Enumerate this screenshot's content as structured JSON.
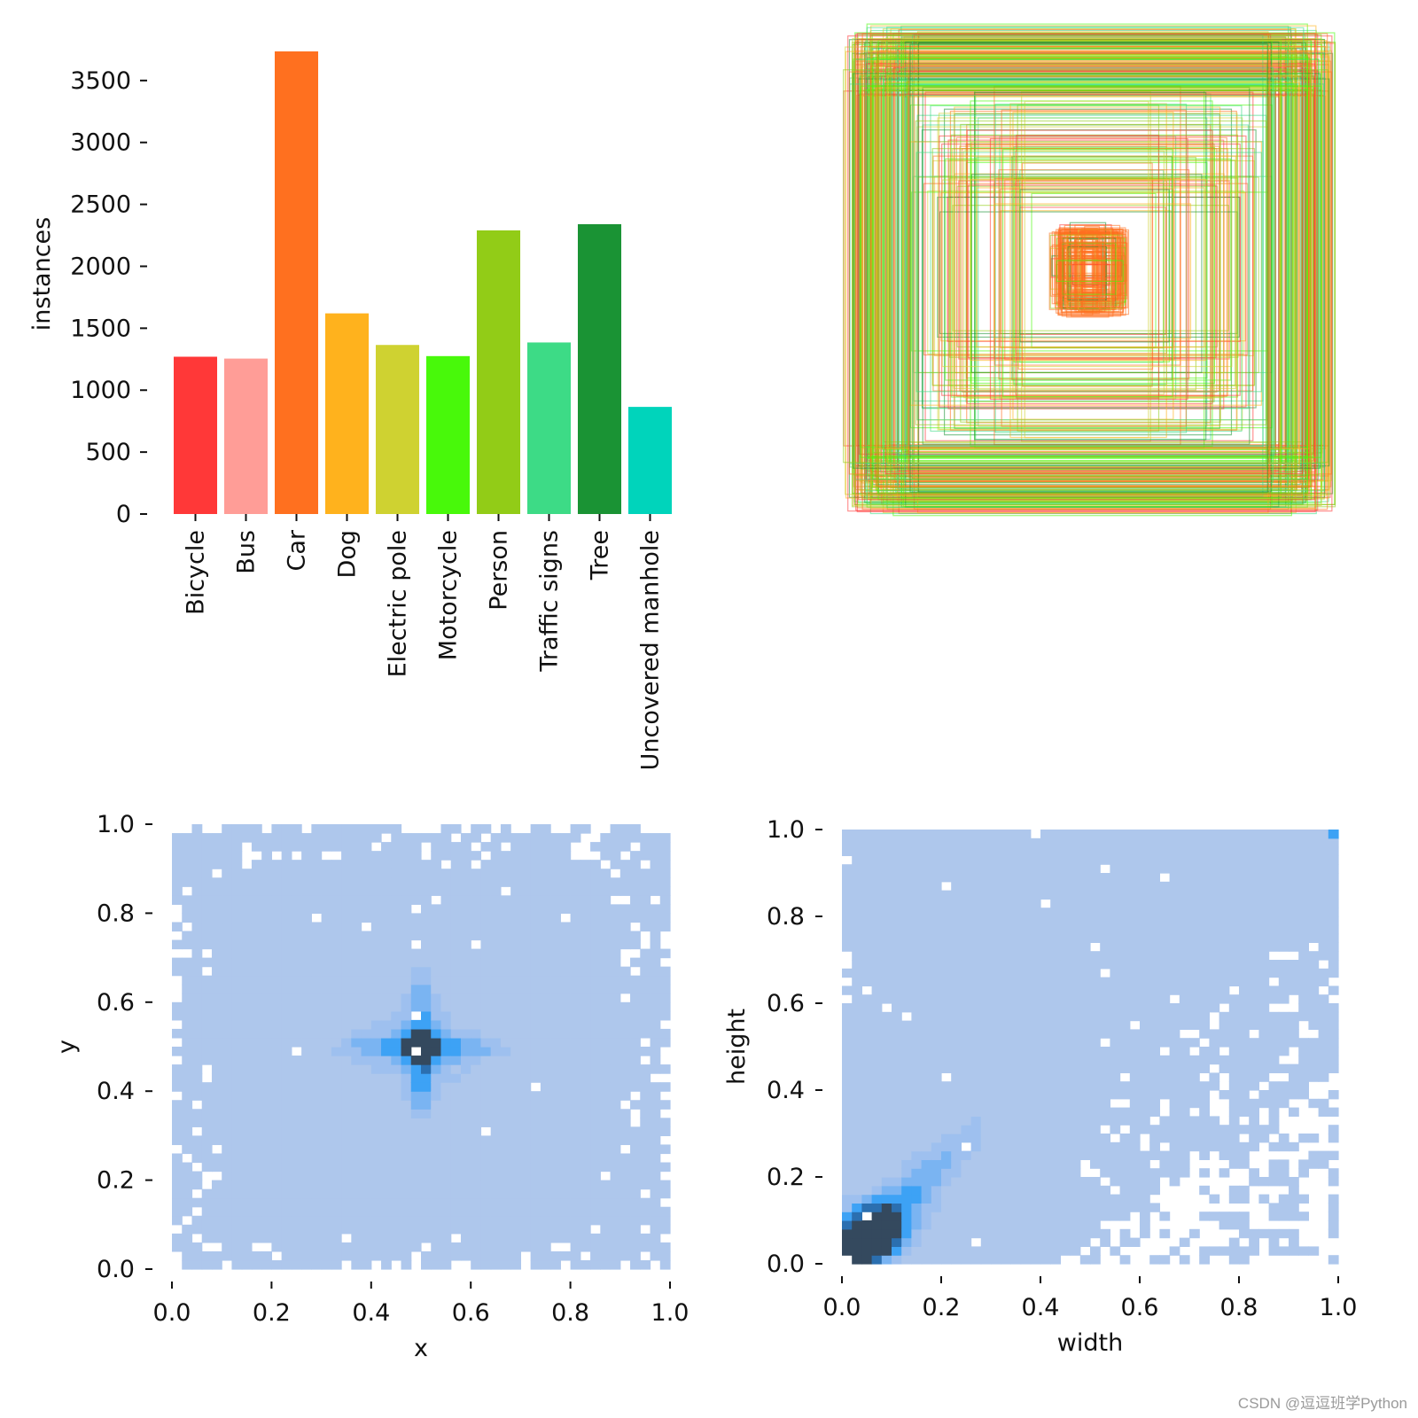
{
  "chart_data": [
    {
      "type": "bar",
      "categories": [
        "Bicycle",
        "Bus",
        "Car",
        "Dog",
        "Electric pole",
        "Motorcycle",
        "Person",
        "Traffic signs",
        "Tree",
        "Uncovered manhole"
      ],
      "values": [
        1270,
        1255,
        3735,
        1620,
        1365,
        1275,
        2290,
        1385,
        2340,
        865
      ],
      "colors": [
        "#ff3838",
        "#ff9d97",
        "#ff701f",
        "#ffb21d",
        "#cfd231",
        "#48f90a",
        "#92cc17",
        "#3ddb86",
        "#1a9334",
        "#00d4bb"
      ],
      "xlabel": "",
      "ylabel": "instances",
      "yticks": [
        0,
        500,
        1000,
        1500,
        2000,
        2500,
        3000,
        3500
      ],
      "ylim": [
        0,
        3735
      ]
    },
    {
      "type": "box-overlay",
      "description_none": "",
      "series_colors": [
        "#ff701f",
        "#48f90a",
        "#92cc17",
        "#1a9334",
        "#3ddb86",
        "#cfd231",
        "#ff3838",
        "#ffb21d"
      ],
      "box_count": 420
    },
    {
      "type": "heatmap",
      "xlabel": "x",
      "ylabel": "y",
      "xticks": [
        "0.0",
        "0.2",
        "0.4",
        "0.6",
        "0.8",
        "1.0"
      ],
      "yticks": [
        "0.0",
        "0.2",
        "0.4",
        "0.6",
        "0.8",
        "1.0"
      ],
      "xlim": [
        0,
        1
      ],
      "ylim": [
        0,
        1
      ],
      "bins": 50,
      "peak": [
        0.5,
        0.5
      ],
      "colors": [
        "#aec7ec",
        "#9ec0ef",
        "#7ab4f2",
        "#3da2f5",
        "#2b6fb0",
        "#34495e"
      ]
    },
    {
      "type": "heatmap",
      "xlabel": "width",
      "ylabel": "height",
      "xticks": [
        "0.0",
        "0.2",
        "0.4",
        "0.6",
        "0.8",
        "1.0"
      ],
      "yticks": [
        "0.0",
        "0.2",
        "0.4",
        "0.6",
        "0.8",
        "1.0"
      ],
      "xlim": [
        0,
        1
      ],
      "ylim": [
        0,
        1
      ],
      "bins": 50,
      "peak": [
        0.06,
        0.07
      ],
      "colors": [
        "#aec7ec",
        "#9ec0ef",
        "#7ab4f2",
        "#3da2f5",
        "#2b6fb0",
        "#34495e"
      ]
    }
  ],
  "watermark": "CSDN @逗逗班学Python"
}
